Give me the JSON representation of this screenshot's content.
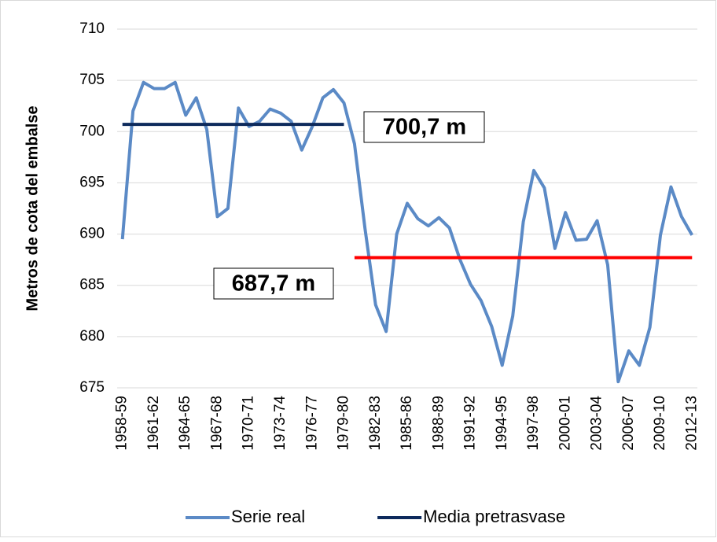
{
  "chart_data": {
    "type": "line",
    "y_label": "Metros de cota del embalse",
    "categories": [
      "1958-59",
      null,
      null,
      "1961-62",
      null,
      null,
      "1964-65",
      null,
      null,
      "1967-68",
      null,
      null,
      "1970-71",
      null,
      null,
      "1973-74",
      null,
      null,
      "1976-77",
      null,
      null,
      "1979-80",
      null,
      null,
      "1982-83",
      null,
      null,
      "1985-86",
      null,
      null,
      "1988-89",
      null,
      null,
      "1991-92",
      null,
      null,
      "1994-95",
      null,
      null,
      "1997-98",
      null,
      null,
      "2000-01",
      null,
      null,
      "2003-04",
      null,
      null,
      "2006-07",
      null,
      null,
      "2009-10",
      null,
      null,
      "2012-13"
    ],
    "series": [
      {
        "name": "Serie real",
        "color": "#5b8ac6",
        "values": [
          689.5,
          702,
          704.8,
          704.2,
          704.2,
          704.8,
          701.6,
          703.3,
          700.2,
          691.7,
          692.5,
          702.3,
          700.5,
          701.0,
          702.2,
          701.8,
          701.0,
          698.2,
          700.5,
          703.3,
          704.1,
          702.8,
          698.8,
          690.5,
          683.1,
          680.5,
          690.0,
          693.0,
          691.5,
          690.8,
          691.6,
          690.6,
          687.5,
          685.1,
          683.5,
          681.0,
          677.2,
          682.0,
          691.2,
          696.2,
          694.5,
          688.6,
          692.1,
          689.4,
          689.5,
          691.3,
          687.0,
          675.6,
          678.6,
          677.2,
          680.9,
          689.9,
          694.6,
          691.7,
          689.9
        ]
      },
      {
        "name": "Media pretrasvase",
        "color": "#0d2a5c",
        "values": [
          700.7,
          700.7,
          700.7,
          700.7,
          700.7,
          700.7,
          700.7,
          700.7,
          700.7,
          700.7,
          700.7,
          700.7,
          700.7,
          700.7,
          700.7,
          700.7,
          700.7,
          700.7,
          700.7,
          700.7,
          700.7,
          700.7,
          null,
          null,
          null,
          null,
          null,
          null,
          null,
          null,
          null,
          null,
          null,
          null,
          null,
          null,
          null,
          null,
          null,
          null,
          null,
          null,
          null,
          null,
          null,
          null,
          null,
          null,
          null,
          null,
          null,
          null,
          null,
          null,
          null
        ]
      },
      {
        "color": "#ff0000",
        "values": [
          null,
          null,
          null,
          null,
          null,
          null,
          null,
          null,
          null,
          null,
          null,
          null,
          null,
          null,
          null,
          null,
          null,
          null,
          null,
          null,
          null,
          null,
          687.7,
          687.7,
          687.7,
          687.7,
          687.7,
          687.7,
          687.7,
          687.7,
          687.7,
          687.7,
          687.7,
          687.7,
          687.7,
          687.7,
          687.7,
          687.7,
          687.7,
          687.7,
          687.7,
          687.7,
          687.7,
          687.7,
          687.7,
          687.7,
          687.7,
          687.7,
          687.7,
          687.7,
          687.7,
          687.7,
          687.7,
          687.7,
          687.7
        ]
      }
    ],
    "annotations": [
      {
        "text": "700,7 m"
      },
      {
        "text": "687,7 m"
      }
    ],
    "ylim": [
      675,
      710
    ],
    "yticks": [
      675,
      680,
      685,
      690,
      695,
      700,
      705,
      710
    ],
    "grid": true,
    "legend": "bottom"
  }
}
